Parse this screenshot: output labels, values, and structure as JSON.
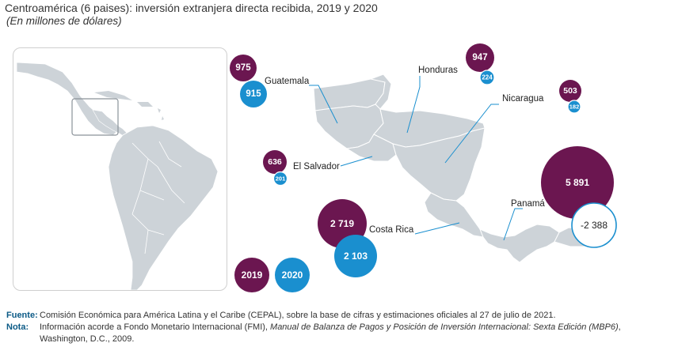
{
  "title": "Centroamérica (6 paises): inversión extranjera directa recibida, 2019 y 2020",
  "subtitle": "(En millones de dólares)",
  "colors": {
    "y2019": "#6b1650",
    "y2020": "#1a8fcf",
    "land": "#cdd3d8",
    "border": "#ffffff"
  },
  "legend": {
    "y2019": "2019",
    "y2020": "2020"
  },
  "countries": [
    {
      "id": "guatemala",
      "name": "Guatemala",
      "v2019": "975",
      "v2020": "915"
    },
    {
      "id": "honduras",
      "name": "Honduras",
      "v2019": "947",
      "v2020": "224"
    },
    {
      "id": "nicaragua",
      "name": "Nicaragua",
      "v2019": "503",
      "v2020": "182"
    },
    {
      "id": "elsalvador",
      "name": "El Salvador",
      "v2019": "636",
      "v2020": "201"
    },
    {
      "id": "costarica",
      "name": "Costa Rica",
      "v2019": "2 719",
      "v2020": "2 103"
    },
    {
      "id": "panama",
      "name": "Panamá",
      "v2019": "5 891",
      "v2020": "-2 388"
    }
  ],
  "notes": {
    "source_key": "Fuente",
    "source_text": "Comisión Económica para América Latina y el Caribe (CEPAL), sobre la base de cifras y estimaciones oficiales al 27 de julio de 2021.",
    "note_key": "Nota",
    "note_prefix": "Información acorde a Fondo Monetario Internacional (FMI), ",
    "note_italic": "Manual de Balanza de Pagos y Posición de Inversión Internacional: Sexta Edición (MBP6)",
    "note_suffix": ", Washington, D.C., 2009."
  }
}
